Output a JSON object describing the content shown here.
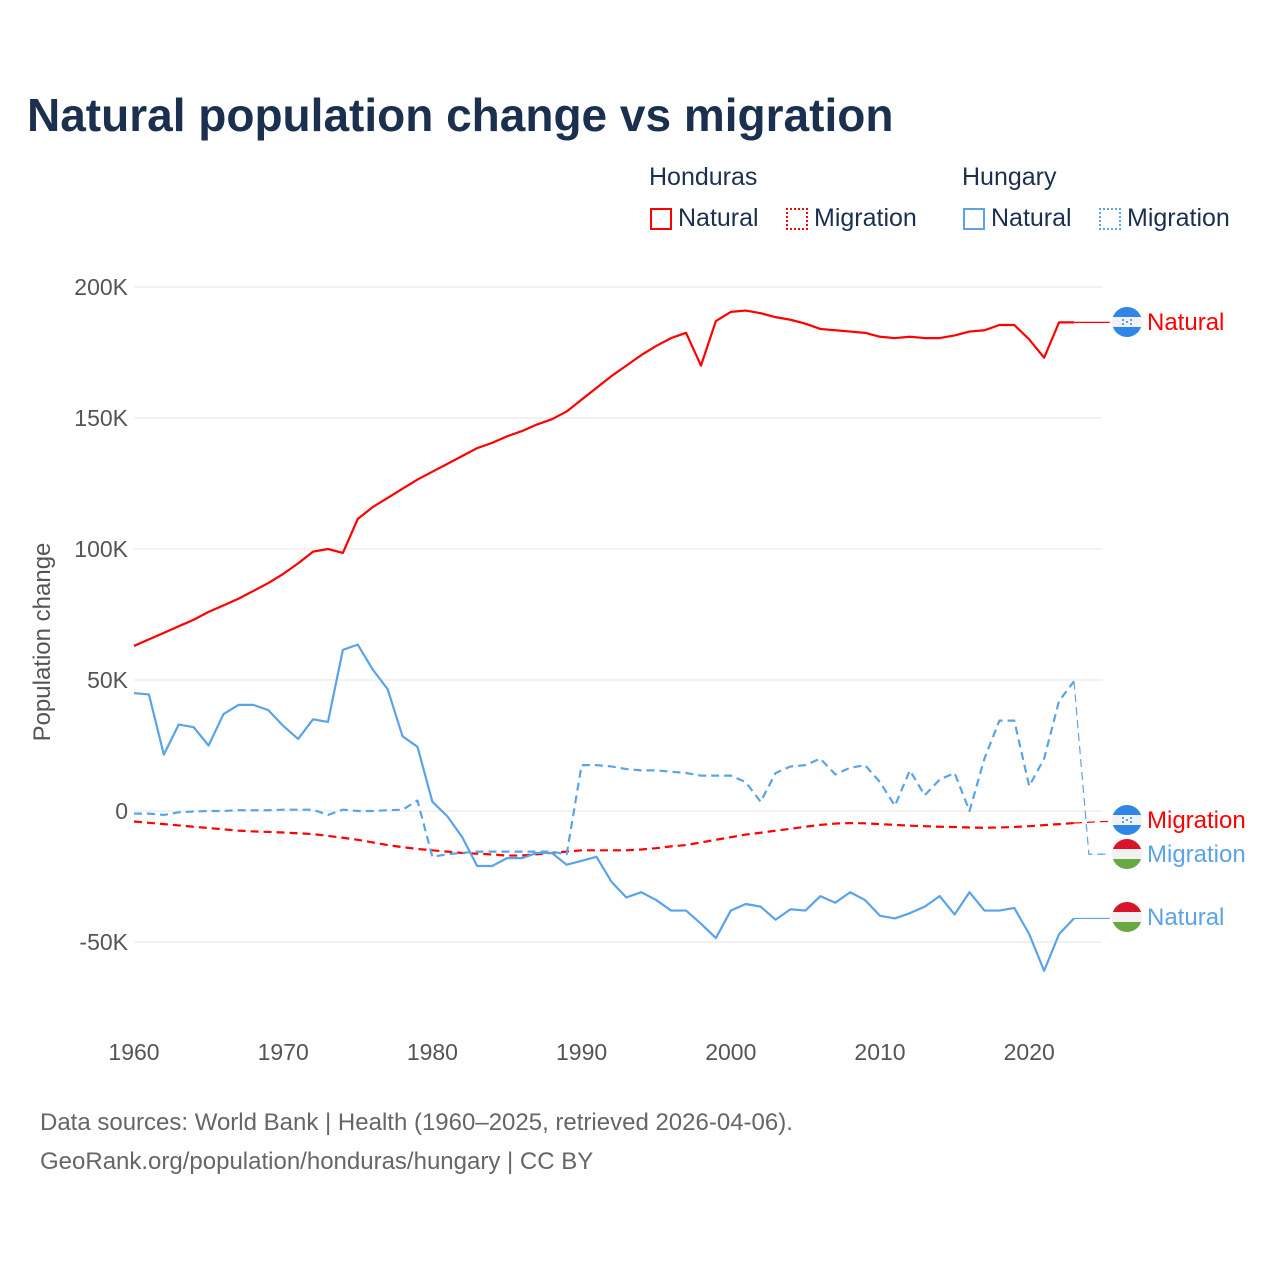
{
  "title": "Natural population change vs migration",
  "legend": {
    "groups": [
      {
        "name": "Honduras",
        "items": [
          "Natural",
          "Migration"
        ],
        "color": "#ff0000"
      },
      {
        "name": "Hungary",
        "items": [
          "Natural",
          "Migration"
        ],
        "color": "#5ba3e8"
      }
    ]
  },
  "footer": {
    "line1": "Data sources: World Bank | Health (1960–2025, retrieved 2026-04-06).",
    "line2": "GeoRank.org/population/honduras/hungary | CC BY"
  },
  "end_labels": {
    "hn_natural": "Natural",
    "hn_migration": "Migration",
    "hu_migration": "Migration",
    "hu_natural": "Natural"
  },
  "chart_data": {
    "type": "line",
    "title": "Natural population change vs migration",
    "xlabel": "",
    "ylabel": "Population change",
    "xlim": [
      1960,
      2025
    ],
    "ylim": [
      -80000,
      200000
    ],
    "xticks": [
      1960,
      1970,
      1980,
      1990,
      2000,
      2010,
      2020
    ],
    "yticks": [
      {
        "v": 200000,
        "l": "200K"
      },
      {
        "v": 150000,
        "l": "150K"
      },
      {
        "v": 100000,
        "l": "100K"
      },
      {
        "v": 50000,
        "l": "50K"
      },
      {
        "v": 0,
        "l": "0"
      },
      {
        "v": -50000,
        "l": "-50K"
      }
    ],
    "x_start": 1960,
    "series": [
      {
        "id": "hn_natural",
        "name": "Honduras Natural",
        "color": "#ff0000",
        "dash": false,
        "values": [
          63,
          65.5,
          68,
          70.5,
          73,
          76,
          78.5,
          81,
          84,
          87,
          90.5,
          94.5,
          99,
          100,
          98.5,
          111.5,
          116,
          119.5,
          123,
          126.5,
          129.5,
          132.5,
          135.5,
          138.5,
          140.5,
          143,
          145,
          147.5,
          149.5,
          152.5,
          157,
          161.5,
          166,
          170,
          174,
          177.5,
          180.5,
          182.5,
          170,
          187,
          190.5,
          191,
          190,
          188.5,
          187.5,
          186,
          184,
          183.5,
          183,
          182.5,
          181,
          180.5,
          181,
          180.5,
          180.5,
          181.5,
          183,
          183.5,
          185.5,
          185.5,
          180,
          173,
          186.5,
          186.5,
          186.5,
          186.5
        ]
      },
      {
        "id": "hn_migration",
        "name": "Honduras Migration",
        "color": "#ff0000",
        "dash": true,
        "values": [
          -4,
          -4.5,
          -5,
          -5.5,
          -6,
          -6.5,
          -7,
          -7.5,
          -7.8,
          -8,
          -8.2,
          -8.5,
          -8.8,
          -9.5,
          -10.2,
          -11,
          -12,
          -13,
          -13.8,
          -14.5,
          -15,
          -15.5,
          -16,
          -16.3,
          -16.6,
          -17,
          -17,
          -16.5,
          -16,
          -15.5,
          -15,
          -15,
          -15,
          -15,
          -14.7,
          -14.2,
          -13.5,
          -13,
          -12,
          -11,
          -10,
          -9,
          -8.3,
          -7.5,
          -6.8,
          -6,
          -5.3,
          -4.8,
          -4.6,
          -4.7,
          -5,
          -5.3,
          -5.6,
          -5.8,
          -6,
          -6.1,
          -6.3,
          -6.4,
          -6.3,
          -6.1,
          -5.8,
          -5.4,
          -5,
          -4.6,
          -4.3,
          -4
        ]
      },
      {
        "id": "hu_natural",
        "name": "Hungary Natural",
        "color": "#5ba3e8",
        "dash": false,
        "values": [
          45,
          44.5,
          21.5,
          33,
          32,
          25,
          37,
          40.5,
          40.5,
          38.5,
          32.5,
          27.5,
          35,
          34,
          61.5,
          63.5,
          54,
          46.5,
          28.5,
          24.5,
          3.5,
          -2,
          -10,
          -21,
          -21,
          -18,
          -18,
          -16,
          -16,
          -20.5,
          -19,
          -17.5,
          -27,
          -33,
          -31,
          -34,
          -38,
          -38,
          -43,
          -48.5,
          -38,
          -35.5,
          -36.5,
          -41.5,
          -37.5,
          -38,
          -32.5,
          -35,
          -31,
          -34,
          -40,
          -41,
          -39,
          -36.5,
          -32.5,
          -39.5,
          -31,
          -38,
          -38,
          -37,
          -47,
          -61,
          -47,
          -41,
          -41,
          -41
        ]
      },
      {
        "id": "hu_migration",
        "name": "Hungary Migration",
        "color": "#5ba3e8",
        "dash": true,
        "values": [
          -1,
          -1,
          -1.5,
          -0.5,
          -0.2,
          0,
          0,
          0.3,
          0.3,
          0.3,
          0.5,
          0.5,
          0.5,
          -1.5,
          0.5,
          0,
          0,
          0.3,
          0.5,
          4,
          -17.5,
          -16.5,
          -16,
          -15.5,
          -15.5,
          -15.5,
          -15.5,
          -15.5,
          -15.5,
          -16.5,
          17.5,
          17.5,
          17,
          16,
          15.5,
          15.5,
          15,
          14.5,
          13.5,
          13.5,
          13.5,
          11,
          3.5,
          14.5,
          17,
          17.5,
          20,
          14,
          16.5,
          17.5,
          11,
          2,
          15.5,
          6,
          12,
          14.5,
          0,
          20,
          34.5,
          34.5,
          9.5,
          20,
          42,
          49.5,
          -16.5,
          -16.5
        ]
      }
    ],
    "value_unit": "thousands"
  }
}
